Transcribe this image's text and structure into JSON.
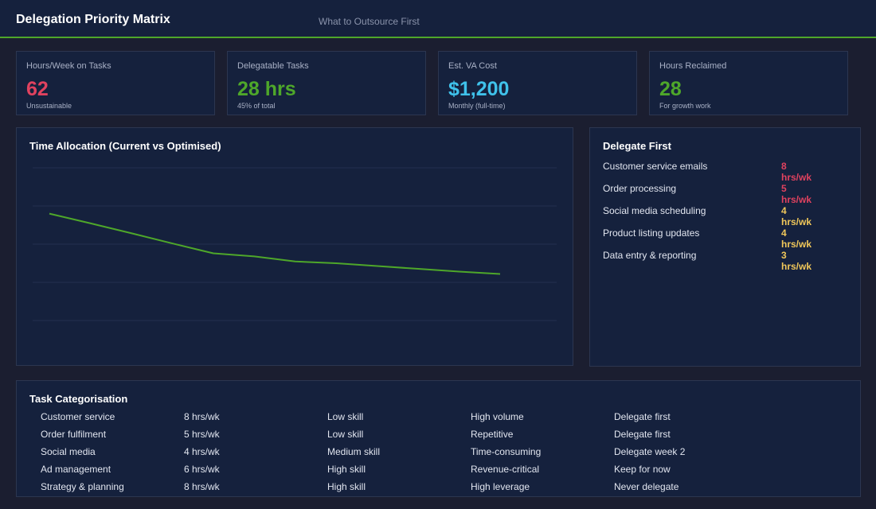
{
  "header": {
    "title": "Delegation Priority Matrix",
    "subtitle": "What to Outsource First",
    "accent_color": "#4ea72a"
  },
  "kpis": [
    {
      "label": "Hours/Week on Tasks",
      "value": "62",
      "sub": "Unsustainable",
      "color": "#e0425f"
    },
    {
      "label": "Delegatable Tasks",
      "value": "28 hrs",
      "sub": "45% of total",
      "color": "#4ea72a"
    },
    {
      "label": "Est. VA Cost",
      "value": "$1,200",
      "sub": "Monthly (full-time)",
      "color": "#3fc1ea"
    },
    {
      "label": "Hours Reclaimed",
      "value": "28",
      "sub": "For growth work",
      "color": "#4ea72a"
    }
  ],
  "time_allocation": {
    "title": "Time Allocation (Current vs Optimised)"
  },
  "chart_data": {
    "type": "line",
    "title": "Time Allocation (Current vs Optimised)",
    "x": [
      0,
      1,
      2,
      3,
      4,
      5,
      6,
      7,
      8,
      9,
      10,
      11
    ],
    "series": [
      {
        "values": [
          62,
          58.2,
          54.3,
          50.3,
          46.4,
          45.2,
          43.2,
          42.5,
          41.4,
          40.3,
          39.2,
          38.3
        ],
        "color": "#4ea72a"
      }
    ],
    "ylim": [
      20,
      80
    ],
    "grid": true,
    "xlabel": "",
    "ylabel": ""
  },
  "delegate_first": {
    "title": "Delegate First",
    "items": [
      {
        "task": "Customer service emails",
        "hours": "8 hrs/wk",
        "color": "#e0425f"
      },
      {
        "task": "Order processing",
        "hours": "5 hrs/wk",
        "color": "#e0425f"
      },
      {
        "task": "Social media scheduling",
        "hours": "4 hrs/wk",
        "color": "#f0c75a"
      },
      {
        "task": "Product listing updates",
        "hours": "4 hrs/wk",
        "color": "#f0c75a"
      },
      {
        "task": "Data entry & reporting",
        "hours": "3 hrs/wk",
        "color": "#f0c75a"
      }
    ]
  },
  "task_categorisation": {
    "title": "Task Categorisation",
    "rows": [
      [
        "Customer service",
        "8 hrs/wk",
        "Low skill",
        "High volume",
        "Delegate first"
      ],
      [
        "Order fulfilment",
        "5 hrs/wk",
        "Low skill",
        "Repetitive",
        "Delegate first"
      ],
      [
        "Social media",
        "4 hrs/wk",
        "Medium skill",
        "Time-consuming",
        "Delegate week 2"
      ],
      [
        "Ad management",
        "6 hrs/wk",
        "High skill",
        "Revenue-critical",
        "Keep for now"
      ],
      [
        "Strategy & planning",
        "8 hrs/wk",
        "High skill",
        "High leverage",
        "Never delegate"
      ]
    ]
  }
}
